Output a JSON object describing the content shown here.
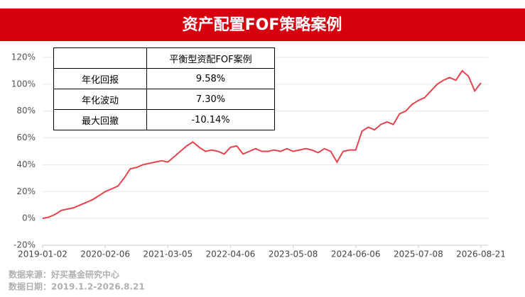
{
  "chart_data": {
    "type": "line",
    "title": "资产配置FOF策略案例",
    "categories": [
      "2019-01-02",
      null,
      null,
      null,
      null,
      null,
      null,
      null,
      null,
      null,
      "2020-02-06",
      null,
      null,
      null,
      null,
      null,
      null,
      null,
      null,
      null,
      "2021-03-05",
      null,
      null,
      null,
      null,
      null,
      null,
      null,
      null,
      null,
      "2022-04-06",
      null,
      null,
      null,
      null,
      null,
      null,
      null,
      null,
      null,
      "2023-05-08",
      null,
      null,
      null,
      null,
      null,
      null,
      null,
      null,
      null,
      "2024-06-06",
      null,
      null,
      null,
      null,
      null,
      null,
      null,
      null,
      null,
      "2025-07-08",
      null,
      null,
      null,
      null,
      null,
      null,
      null,
      null,
      null,
      "2026-08-21"
    ],
    "values": [
      0,
      1,
      3,
      6,
      7,
      8,
      10,
      12,
      14,
      17,
      20,
      22,
      24,
      30,
      37,
      38,
      40,
      41,
      42,
      43,
      42,
      46,
      50,
      54,
      57,
      53,
      50,
      51,
      50,
      48,
      53,
      54,
      48,
      50,
      52,
      50,
      50,
      51,
      50,
      52,
      50,
      51,
      52,
      51,
      49,
      52,
      50,
      42,
      50,
      51,
      51,
      65,
      68,
      66,
      70,
      72,
      70,
      78,
      80,
      85,
      88,
      90,
      95,
      100,
      103,
      105,
      103,
      110,
      106,
      95,
      101
    ],
    "color": "#e8434c",
    "ylim": [
      -20,
      120
    ],
    "yticks": [
      {
        "value": -20,
        "label": "-20%"
      },
      {
        "value": 0,
        "label": "0%"
      },
      {
        "value": 20,
        "label": "20%"
      },
      {
        "value": 40,
        "label": "40%"
      },
      {
        "value": 60,
        "label": "60%"
      },
      {
        "value": 80,
        "label": "80%"
      },
      {
        "value": 100,
        "label": "100%"
      },
      {
        "value": 120,
        "label": "120%"
      }
    ],
    "grid": true,
    "notes": [
      "数据来源：好买基金研究中心",
      "数据日期：2019.1.2-2026.8.21"
    ]
  },
  "table": {
    "header": "平衡型资配FOF案例",
    "rows": [
      [
        "年化回报",
        "9.58%"
      ],
      [
        "年化波动",
        "7.30%"
      ],
      [
        "最大回撤",
        "-10.14%"
      ]
    ]
  }
}
